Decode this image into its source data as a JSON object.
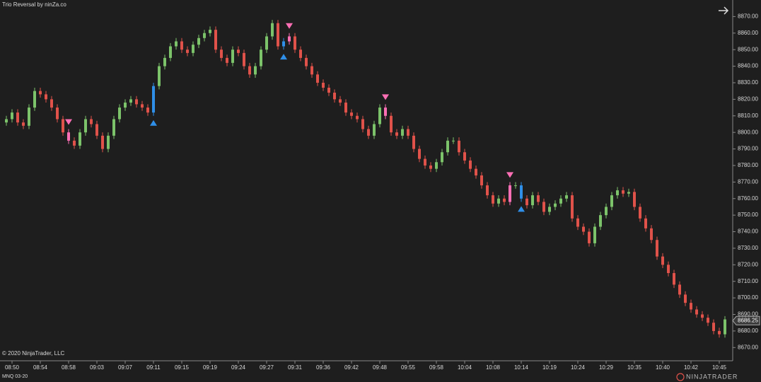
{
  "chart_data": {
    "type": "candlestick",
    "title": "Trio Reversal by ninZa.co",
    "copyright": "© 2020 NinjaTrader, LLC",
    "instrument": "MNQ 03-20",
    "logo": "NINJATRADER",
    "last_price": 8686.25,
    "up_color": "#7cc36a",
    "down_color": "#e0524a",
    "signal_up_color": "#2f8fe8",
    "signal_down_color": "#ff6fb5",
    "ylim": [
      8662,
      8880
    ],
    "yticks": [
      {
        "value": 8670,
        "label": "8670.00"
      },
      {
        "value": 8680,
        "label": "8680.00"
      },
      {
        "value": 8690,
        "label": "8690.00"
      },
      {
        "value": 8700,
        "label": "8700.00"
      },
      {
        "value": 8710,
        "label": "8710.00"
      },
      {
        "value": 8720,
        "label": "8720.00"
      },
      {
        "value": 8730,
        "label": "8730.00"
      },
      {
        "value": 8740,
        "label": "8740.00"
      },
      {
        "value": 8750,
        "label": "8750.00"
      },
      {
        "value": 8760,
        "label": "8760.00"
      },
      {
        "value": 8770,
        "label": "8770.00"
      },
      {
        "value": 8780,
        "label": "8780.00"
      },
      {
        "value": 8790,
        "label": "8790.00"
      },
      {
        "value": 8800,
        "label": "8800.00"
      },
      {
        "value": 8810,
        "label": "8810.00"
      },
      {
        "value": 8820,
        "label": "8820.00"
      },
      {
        "value": 8830,
        "label": "8830.00"
      },
      {
        "value": 8840,
        "label": "8840.00"
      },
      {
        "value": 8850,
        "label": "8850.00"
      },
      {
        "value": 8860,
        "label": "8860.00"
      },
      {
        "value": 8870,
        "label": "8870.00"
      }
    ],
    "categories": [
      null,
      "08:50",
      null,
      null,
      null,
      null,
      "08:54",
      null,
      null,
      null,
      null,
      "08:58",
      null,
      null,
      null,
      null,
      "09:03",
      null,
      null,
      null,
      null,
      "09:07",
      null,
      null,
      null,
      null,
      "09:11",
      null,
      null,
      null,
      null,
      "09:15",
      null,
      null,
      null,
      null,
      "09:19",
      null,
      null,
      null,
      null,
      "09:24",
      null,
      null,
      null,
      null,
      "09:27",
      null,
      null,
      null,
      null,
      "09:31",
      null,
      null,
      null,
      null,
      "09:36",
      null,
      null,
      null,
      null,
      "09:42",
      null,
      null,
      null,
      null,
      "09:48",
      null,
      null,
      null,
      null,
      "09:55",
      null,
      null,
      null,
      null,
      "09:58",
      null,
      null,
      null,
      null,
      "10:04",
      null,
      null,
      null,
      null,
      "10:08",
      null,
      null,
      null,
      null,
      "10:14",
      null,
      null,
      null,
      null,
      "10:19",
      null,
      null,
      null,
      null,
      "10:24",
      null,
      null,
      null,
      null,
      "10:29",
      null,
      null,
      null,
      null,
      "10:35",
      null,
      null,
      null,
      null,
      "10:40",
      null,
      null,
      null,
      null,
      "10:42",
      null,
      null,
      null,
      null,
      "10:45",
      null
    ],
    "open": [
      8806,
      8808,
      8812,
      8806,
      8804,
      8815,
      8825,
      8823,
      8820,
      8815,
      8808,
      8800,
      8795,
      8792,
      8800,
      8808,
      8805,
      8798,
      8790,
      8798,
      8808,
      8815,
      8818,
      8820,
      8817,
      8815,
      8812,
      8828,
      8840,
      8845,
      8852,
      8855,
      8850,
      8848,
      8853,
      8857,
      8860,
      8862,
      8850,
      8845,
      8842,
      8850,
      8848,
      8840,
      8835,
      8840,
      8850,
      8858,
      8866,
      8852,
      8855,
      8858,
      8850,
      8845,
      8840,
      8835,
      8830,
      8827,
      8824,
      8820,
      8818,
      8812,
      8810,
      8808,
      8802,
      8798,
      8805,
      8815,
      8810,
      8800,
      8798,
      8802,
      8798,
      8790,
      8784,
      8780,
      8778,
      8782,
      8788,
      8795,
      8795,
      8788,
      8783,
      8778,
      8774,
      8768,
      8762,
      8757,
      8760,
      8758,
      8768,
      8768,
      8760,
      8756,
      8762,
      8758,
      8752,
      8755,
      8757,
      8760,
      8762,
      8748,
      8743,
      8740,
      8733,
      8743,
      8750,
      8755,
      8762,
      8765,
      8763,
      8764,
      8755,
      8748,
      8742,
      8735,
      8725,
      8720,
      8715,
      8708,
      8702,
      8697,
      8693,
      8690,
      8688,
      8685,
      8680,
      8678
    ],
    "high": [
      8810,
      8814,
      8814,
      8808,
      8817,
      8827,
      8827,
      8825,
      8822,
      8817,
      8810,
      8802,
      8797,
      8802,
      8810,
      8810,
      8807,
      8800,
      8800,
      8810,
      8817,
      8820,
      8822,
      8822,
      8819,
      8817,
      8830,
      8842,
      8847,
      8854,
      8857,
      8857,
      8852,
      8855,
      8859,
      8862,
      8864,
      8864,
      8852,
      8847,
      8852,
      8852,
      8850,
      8842,
      8842,
      8852,
      8860,
      8868,
      8868,
      8857,
      8860,
      8860,
      8852,
      8847,
      8842,
      8837,
      8832,
      8829,
      8826,
      8822,
      8820,
      8814,
      8812,
      8810,
      8804,
      8807,
      8817,
      8817,
      8812,
      8802,
      8804,
      8804,
      8800,
      8792,
      8786,
      8782,
      8784,
      8790,
      8797,
      8797,
      8797,
      8790,
      8785,
      8780,
      8776,
      8770,
      8764,
      8762,
      8762,
      8770,
      8770,
      8770,
      8762,
      8764,
      8764,
      8760,
      8757,
      8759,
      8762,
      8764,
      8764,
      8750,
      8745,
      8742,
      8745,
      8752,
      8757,
      8764,
      8767,
      8767,
      8766,
      8766,
      8757,
      8750,
      8744,
      8737,
      8727,
      8722,
      8717,
      8710,
      8704,
      8699,
      8695,
      8692,
      8690,
      8687,
      8682,
      8689
    ],
    "low": [
      8804,
      8806,
      8804,
      8802,
      8802,
      8813,
      8821,
      8818,
      8813,
      8806,
      8798,
      8793,
      8790,
      8790,
      8798,
      8803,
      8796,
      8788,
      8788,
      8796,
      8806,
      8813,
      8816,
      8815,
      8813,
      8810,
      8810,
      8826,
      8838,
      8843,
      8850,
      8848,
      8846,
      8846,
      8851,
      8855,
      8858,
      8848,
      8843,
      8840,
      8840,
      8846,
      8838,
      8833,
      8833,
      8838,
      8848,
      8856,
      8850,
      8850,
      8853,
      8848,
      8843,
      8838,
      8833,
      8828,
      8825,
      8822,
      8818,
      8816,
      8810,
      8808,
      8806,
      8800,
      8796,
      8796,
      8803,
      8808,
      8798,
      8796,
      8796,
      8796,
      8788,
      8782,
      8778,
      8776,
      8776,
      8780,
      8786,
      8793,
      8786,
      8781,
      8776,
      8772,
      8766,
      8760,
      8755,
      8755,
      8756,
      8756,
      8766,
      8758,
      8754,
      8754,
      8756,
      8750,
      8750,
      8753,
      8755,
      8758,
      8746,
      8741,
      8738,
      8731,
      8731,
      8741,
      8748,
      8753,
      8760,
      8761,
      8761,
      8753,
      8746,
      8740,
      8733,
      8723,
      8718,
      8713,
      8706,
      8700,
      8695,
      8691,
      8688,
      8686,
      8683,
      8678,
      8676,
      8676
    ],
    "close": [
      8808,
      8812,
      8806,
      8804,
      8815,
      8825,
      8823,
      8820,
      8815,
      8808,
      8800,
      8795,
      8792,
      8800,
      8808,
      8805,
      8798,
      8790,
      8798,
      8808,
      8815,
      8818,
      8820,
      8817,
      8815,
      8812,
      8828,
      8840,
      8845,
      8852,
      8855,
      8850,
      8848,
      8853,
      8857,
      8860,
      8862,
      8850,
      8845,
      8842,
      8850,
      8848,
      8840,
      8835,
      8840,
      8850,
      8858,
      8866,
      8852,
      8855,
      8858,
      8850,
      8845,
      8840,
      8835,
      8830,
      8827,
      8824,
      8820,
      8818,
      8812,
      8810,
      8808,
      8802,
      8798,
      8805,
      8815,
      8810,
      8800,
      8798,
      8802,
      8798,
      8790,
      8784,
      8780,
      8778,
      8782,
      8788,
      8795,
      8795,
      8788,
      8783,
      8778,
      8774,
      8768,
      8762,
      8757,
      8760,
      8758,
      8768,
      8768,
      8760,
      8756,
      8762,
      8758,
      8752,
      8755,
      8757,
      8760,
      8762,
      8748,
      8743,
      8740,
      8733,
      8743,
      8750,
      8755,
      8762,
      8765,
      8763,
      8764,
      8755,
      8748,
      8742,
      8735,
      8725,
      8720,
      8715,
      8708,
      8702,
      8697,
      8693,
      8690,
      8688,
      8685,
      8680,
      8678,
      8687
    ],
    "signals": [
      {
        "bar": 11,
        "direction": "down"
      },
      {
        "bar": 26,
        "direction": "up"
      },
      {
        "bar": 49,
        "direction": "up"
      },
      {
        "bar": 50,
        "direction": "down"
      },
      {
        "bar": 67,
        "direction": "down"
      },
      {
        "bar": 89,
        "direction": "down"
      },
      {
        "bar": 91,
        "direction": "up"
      }
    ]
  }
}
